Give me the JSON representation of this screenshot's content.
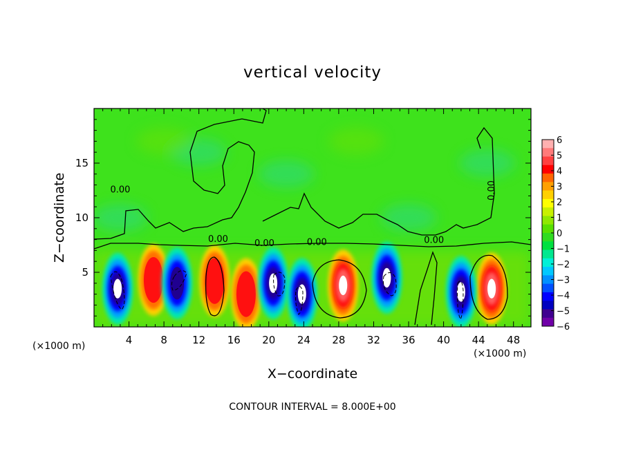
{
  "chart_data": {
    "type": "heatmap",
    "title": "vertical velocity",
    "xlabel": "X−coordinate",
    "ylabel": "Z−coordinate",
    "x_unit_left": "(×1000 m)",
    "x_unit_right": "(×1000 m)",
    "footer": "CONTOUR INTERVAL = 8.000E+00",
    "xlim": [
      0,
      50
    ],
    "ylim": [
      0,
      20
    ],
    "x_ticks": [
      4,
      8,
      12,
      16,
      20,
      24,
      28,
      32,
      36,
      40,
      44,
      48
    ],
    "y_ticks": [
      5,
      10,
      15
    ],
    "colorbar": {
      "range": [
        -6,
        6
      ],
      "labels": [
        "6",
        "5",
        "4",
        "3",
        "2",
        "1",
        "0",
        "−1",
        "−2",
        "−3",
        "−4",
        "−5",
        "−6"
      ],
      "colors": [
        "#ffb0b0",
        "#ff7a7a",
        "#ff4040",
        "#ff0000",
        "#ff6600",
        "#ffa000",
        "#ffd000",
        "#ffff00",
        "#c8f000",
        "#90e800",
        "#58e000",
        "#30dc20",
        "#00e040",
        "#00e890",
        "#00f0d8",
        "#00c8ff",
        "#0090ff",
        "#0050ff",
        "#0000ff",
        "#0000c0",
        "#400090",
        "#7000a8"
      ]
    },
    "contour_labels": [
      {
        "text": "0.00",
        "x": 3.0,
        "z": 12.3
      },
      {
        "text": "0.00",
        "x": 14.2,
        "z": 7.8
      },
      {
        "text": "0.00",
        "x": 19.5,
        "z": 7.4
      },
      {
        "text": "0.00",
        "x": 25.5,
        "z": 7.5
      },
      {
        "text": "0.00",
        "x": 38.9,
        "z": 7.7
      },
      {
        "text": "0.00",
        "x": 45.8,
        "z": 12.5
      }
    ],
    "updraft_cells": [
      {
        "x": 6.8,
        "z": 4.3,
        "w": 5
      },
      {
        "x": 13.8,
        "z": 4.2,
        "w": 5
      },
      {
        "x": 17.4,
        "z": 3.0,
        "w": 5
      },
      {
        "x": 28.5,
        "z": 3.8,
        "w": 8
      },
      {
        "x": 45.5,
        "z": 3.5,
        "w": 8
      }
    ],
    "downdraft_cells": [
      {
        "x": 2.7,
        "z": 3.5,
        "w": -8
      },
      {
        "x": 9.5,
        "z": 4.0,
        "w": -6
      },
      {
        "x": 20.5,
        "z": 4.0,
        "w": -8
      },
      {
        "x": 23.8,
        "z": 3.0,
        "w": -8
      },
      {
        "x": 33.5,
        "z": 4.5,
        "w": -8
      },
      {
        "x": 42.0,
        "z": 3.2,
        "w": -8
      }
    ]
  }
}
